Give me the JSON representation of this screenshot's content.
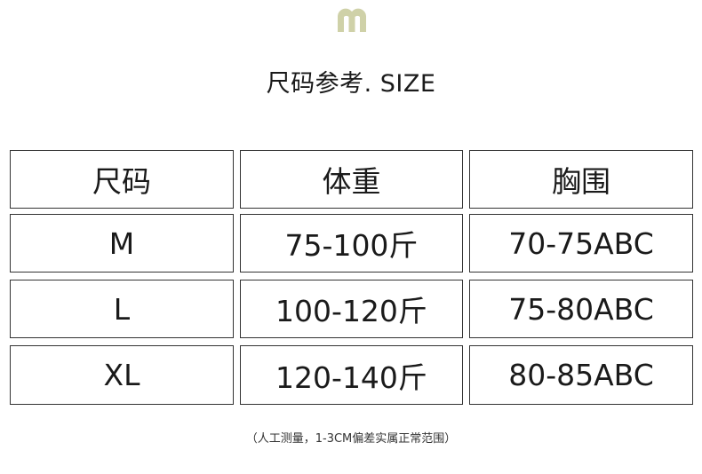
{
  "brand": {
    "logo_letter": "m",
    "logo_color": "#cfd1a8"
  },
  "title": "尺码参考. SIZE",
  "table": {
    "headers": [
      "尺码",
      "体重",
      "胸围"
    ],
    "rows": [
      [
        "M",
        "75-100斤",
        "70-75ABC"
      ],
      [
        "L",
        "100-120斤",
        "75-80ABC"
      ],
      [
        "XL",
        "120-140斤",
        "80-85ABC"
      ]
    ]
  },
  "note": "（人工测量，1-3CM偏差实属正常范围）"
}
